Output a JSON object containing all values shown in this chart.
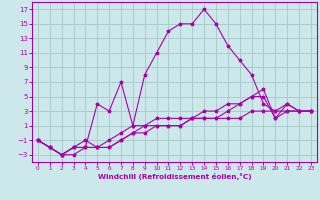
{
  "bg_color": "#cce8ea",
  "grid_color": "#aacccc",
  "line_color": "#aa00aa",
  "marker": "*",
  "xlabel": "Windchill (Refroidissement éolien,°C)",
  "xlabel_color": "#aa00aa",
  "tick_color": "#aa00aa",
  "xlim": [
    -0.5,
    23.5
  ],
  "ylim": [
    -4,
    18
  ],
  "yticks": [
    -3,
    -1,
    1,
    3,
    5,
    7,
    9,
    11,
    13,
    15,
    17
  ],
  "xticks": [
    0,
    1,
    2,
    3,
    4,
    5,
    6,
    7,
    8,
    9,
    10,
    11,
    12,
    13,
    14,
    15,
    16,
    17,
    18,
    19,
    20,
    21,
    22,
    23
  ],
  "series": [
    {
      "x": [
        0,
        1,
        2,
        3,
        4,
        5,
        6,
        7,
        8,
        9,
        10,
        11,
        12,
        13,
        14,
        15,
        16,
        17,
        18,
        19,
        20,
        21,
        22,
        23
      ],
      "y": [
        -1,
        -2,
        -3,
        -3,
        -2,
        4,
        3,
        7,
        1,
        8,
        11,
        14,
        15,
        15,
        17,
        15,
        12,
        10,
        8,
        4,
        3,
        4,
        3,
        3
      ]
    },
    {
      "x": [
        0,
        1,
        2,
        3,
        4,
        5,
        6,
        7,
        8,
        9,
        10,
        11,
        12,
        13,
        14,
        15,
        16,
        17,
        18,
        19,
        20,
        21,
        22,
        23
      ],
      "y": [
        -1,
        -2,
        -3,
        -2,
        -2,
        -2,
        -2,
        -1,
        0,
        0,
        1,
        1,
        1,
        2,
        2,
        2,
        3,
        4,
        5,
        6,
        2,
        3,
        3,
        3
      ]
    },
    {
      "x": [
        0,
        1,
        2,
        3,
        4,
        5,
        6,
        7,
        8,
        9,
        10,
        11,
        12,
        13,
        14,
        15,
        16,
        17,
        18,
        19,
        20,
        21,
        22,
        23
      ],
      "y": [
        -1,
        -2,
        -3,
        -2,
        -2,
        -2,
        -1,
        0,
        1,
        1,
        1,
        1,
        1,
        2,
        2,
        2,
        2,
        2,
        3,
        3,
        3,
        3,
        3,
        3
      ]
    },
    {
      "x": [
        0,
        1,
        2,
        3,
        4,
        5,
        6,
        7,
        8,
        9,
        10,
        11,
        12,
        13,
        14,
        15,
        16,
        17,
        18,
        19,
        20,
        21,
        22,
        23
      ],
      "y": [
        -1,
        -2,
        -3,
        -2,
        -1,
        -2,
        -2,
        -1,
        0,
        1,
        2,
        2,
        2,
        2,
        3,
        3,
        4,
        4,
        5,
        5,
        2,
        4,
        3,
        3
      ]
    }
  ]
}
